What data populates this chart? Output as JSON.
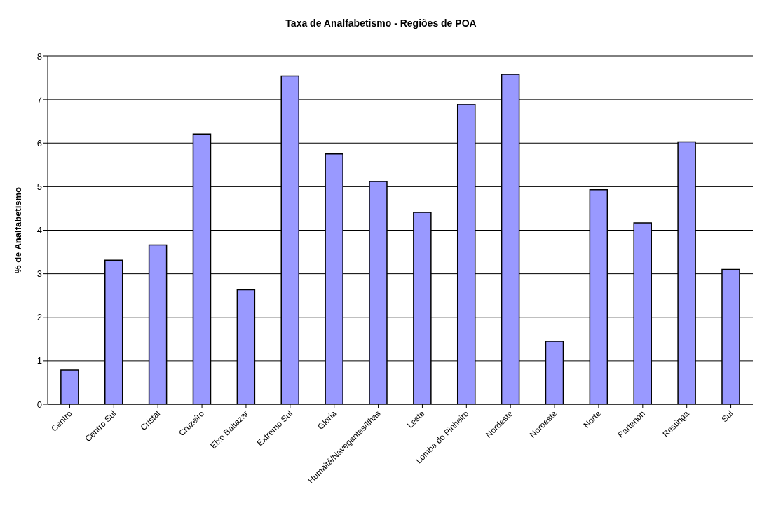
{
  "chart_data": {
    "type": "bar",
    "title": "Taxa de Analfabetismo - Regiões de POA",
    "ylabel": "% de Analfabetismo",
    "categories": [
      "Centro",
      "Centro Sul",
      "Cristal",
      "Cruzeiro",
      "Eixo Baltazar",
      "Extremo Sul",
      "Glória",
      "Humaitá/Navegantes/Ilhas",
      "Leste",
      "Lomba do Pinheiro",
      "Nordeste",
      "Noroeste",
      "Norte",
      "Partenon",
      "Restinga",
      "Sul"
    ],
    "values": [
      0.79,
      3.31,
      3.66,
      6.21,
      2.63,
      7.54,
      5.75,
      5.12,
      4.41,
      6.89,
      7.58,
      1.45,
      4.93,
      4.17,
      6.03,
      3.1
    ],
    "color": "#9999ff",
    "ylim": [
      0,
      8
    ],
    "yticks": [
      0,
      1,
      2,
      3,
      4,
      5,
      6,
      7,
      8
    ],
    "grid": "y",
    "legend": false
  }
}
